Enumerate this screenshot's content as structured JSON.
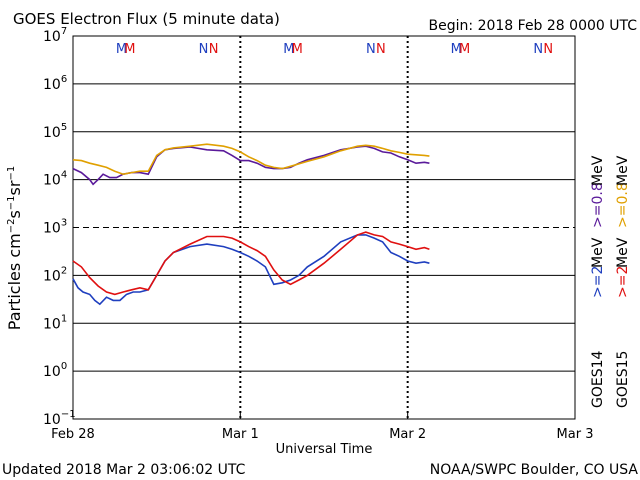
{
  "header": {
    "title": "GOES Electron Flux (5 minute data)",
    "begin": "Begin: 2018 Feb 28 0000 UTC"
  },
  "footer": {
    "updated": "Updated 2018 Mar  2 03:06:02 UTC",
    "credit": "NOAA/SWPC Boulder, CO USA"
  },
  "colors": {
    "goes14_high": "#1f3fbf",
    "goes14_low": "#5a1a9a",
    "goes15_high": "#e01010",
    "goes15_low": "#e0a000"
  },
  "chart_data": {
    "type": "line",
    "title": "GOES Electron Flux (5 minute data)",
    "xlabel": "Universal Time",
    "ylabel": "Particles cm-2s-1sr-1",
    "yscale": "log",
    "ylim": [
      0.1,
      10000000
    ],
    "xlim_days": [
      0,
      3
    ],
    "x_ticks": [
      "Feb 28",
      "Mar 1",
      "Mar 2",
      "Mar 3"
    ],
    "y_ticks": [
      {
        "base": "10",
        "exp": "7"
      },
      {
        "base": "10",
        "exp": "6"
      },
      {
        "base": "10",
        "exp": "5"
      },
      {
        "base": "10",
        "exp": "4"
      },
      {
        "base": "10",
        "exp": "3"
      },
      {
        "base": "10",
        "exp": "2"
      },
      {
        "base": "10",
        "exp": "1"
      },
      {
        "base": "10",
        "exp": "0"
      },
      {
        "base": "10",
        "exp": "−1"
      }
    ],
    "threshold": 1000,
    "markers": [
      {
        "label": "M",
        "x_days": 0.29,
        "satellite": "GOES14"
      },
      {
        "label": "M",
        "x_days": 0.34,
        "satellite": "GOES15"
      },
      {
        "label": "N",
        "x_days": 0.78,
        "satellite": "GOES14"
      },
      {
        "label": "N",
        "x_days": 0.84,
        "satellite": "GOES15"
      },
      {
        "label": "M",
        "x_days": 1.29,
        "satellite": "GOES14"
      },
      {
        "label": "M",
        "x_days": 1.34,
        "satellite": "GOES15"
      },
      {
        "label": "N",
        "x_days": 1.78,
        "satellite": "GOES14"
      },
      {
        "label": "N",
        "x_days": 1.84,
        "satellite": "GOES15"
      },
      {
        "label": "M",
        "x_days": 2.29,
        "satellite": "GOES14"
      },
      {
        "label": "M",
        "x_days": 2.34,
        "satellite": "GOES15"
      },
      {
        "label": "N",
        "x_days": 2.78,
        "satellite": "GOES14"
      },
      {
        "label": "N",
        "x_days": 2.84,
        "satellite": "GOES15"
      }
    ],
    "legend": {
      "GOES14": {
        "name": "GOES14",
        "high": ">=2",
        "low": ">=0.8",
        "unit": "MeV"
      },
      "GOES15": {
        "name": "GOES15",
        "high": ">=2",
        "low": ">=0.8",
        "unit": "MeV"
      }
    },
    "series": [
      {
        "name": "GOES14 >=0.8 MeV",
        "color": "#5a1a9a",
        "x": [
          0.0,
          0.05,
          0.1,
          0.12,
          0.15,
          0.18,
          0.22,
          0.26,
          0.3,
          0.35,
          0.4,
          0.45,
          0.5,
          0.55,
          0.6,
          0.7,
          0.8,
          0.9,
          0.95,
          1.0,
          1.05,
          1.1,
          1.15,
          1.2,
          1.25,
          1.3,
          1.35,
          1.4,
          1.5,
          1.6,
          1.7,
          1.75,
          1.8,
          1.85,
          1.9,
          1.95,
          2.0,
          2.05,
          2.1,
          2.13
        ],
        "y": [
          17000,
          14000,
          10000,
          8000,
          10000,
          13000,
          11000,
          11000,
          13000,
          14000,
          14000,
          13000,
          30000,
          42000,
          45000,
          48000,
          42000,
          40000,
          32000,
          25000,
          25000,
          22000,
          18000,
          17000,
          17000,
          18000,
          22000,
          26000,
          32000,
          42000,
          48000,
          50000,
          45000,
          38000,
          36000,
          30000,
          26000,
          22000,
          23000,
          22000
        ]
      },
      {
        "name": "GOES15 >=0.8 MeV",
        "color": "#e0a000",
        "x": [
          0.0,
          0.05,
          0.1,
          0.15,
          0.2,
          0.25,
          0.3,
          0.35,
          0.4,
          0.45,
          0.5,
          0.55,
          0.6,
          0.7,
          0.8,
          0.9,
          0.95,
          1.0,
          1.05,
          1.1,
          1.15,
          1.2,
          1.25,
          1.3,
          1.4,
          1.5,
          1.6,
          1.7,
          1.75,
          1.8,
          1.85,
          1.9,
          1.95,
          2.0,
          2.05,
          2.1,
          2.13
        ],
        "y": [
          26000,
          25000,
          22000,
          20000,
          18000,
          15000,
          13000,
          14000,
          15000,
          15000,
          32000,
          42000,
          46000,
          50000,
          55000,
          50000,
          45000,
          38000,
          30000,
          25000,
          20000,
          18000,
          17000,
          19000,
          24000,
          30000,
          40000,
          50000,
          52000,
          50000,
          45000,
          40000,
          37000,
          34000,
          33000,
          32000,
          31000
        ]
      },
      {
        "name": "GOES14 >=2 MeV",
        "color": "#1f3fbf",
        "x": [
          0.0,
          0.03,
          0.06,
          0.1,
          0.13,
          0.16,
          0.2,
          0.24,
          0.28,
          0.32,
          0.36,
          0.4,
          0.45,
          0.5,
          0.55,
          0.6,
          0.7,
          0.8,
          0.9,
          0.95,
          1.0,
          1.05,
          1.1,
          1.15,
          1.2,
          1.25,
          1.3,
          1.35,
          1.4,
          1.5,
          1.6,
          1.7,
          1.75,
          1.8,
          1.85,
          1.9,
          1.95,
          2.0,
          2.05,
          2.1,
          2.13
        ],
        "y": [
          85,
          55,
          45,
          40,
          30,
          25,
          35,
          30,
          30,
          40,
          45,
          45,
          50,
          100,
          200,
          300,
          400,
          450,
          400,
          350,
          300,
          250,
          200,
          150,
          65,
          70,
          80,
          100,
          150,
          250,
          500,
          700,
          700,
          600,
          500,
          300,
          250,
          200,
          180,
          190,
          180
        ]
      },
      {
        "name": "GOES15 >=2 MeV",
        "color": "#e01010",
        "x": [
          0.0,
          0.05,
          0.1,
          0.15,
          0.2,
          0.25,
          0.3,
          0.35,
          0.4,
          0.45,
          0.5,
          0.55,
          0.6,
          0.7,
          0.8,
          0.9,
          0.95,
          1.0,
          1.05,
          1.1,
          1.15,
          1.2,
          1.25,
          1.3,
          1.35,
          1.4,
          1.5,
          1.6,
          1.7,
          1.75,
          1.8,
          1.85,
          1.9,
          1.95,
          2.0,
          2.05,
          2.1,
          2.13
        ],
        "y": [
          200,
          150,
          90,
          60,
          45,
          40,
          45,
          50,
          55,
          50,
          100,
          200,
          300,
          450,
          650,
          650,
          600,
          500,
          400,
          330,
          250,
          130,
          80,
          65,
          80,
          100,
          180,
          350,
          700,
          800,
          700,
          650,
          500,
          450,
          400,
          350,
          380,
          350
        ]
      }
    ]
  }
}
